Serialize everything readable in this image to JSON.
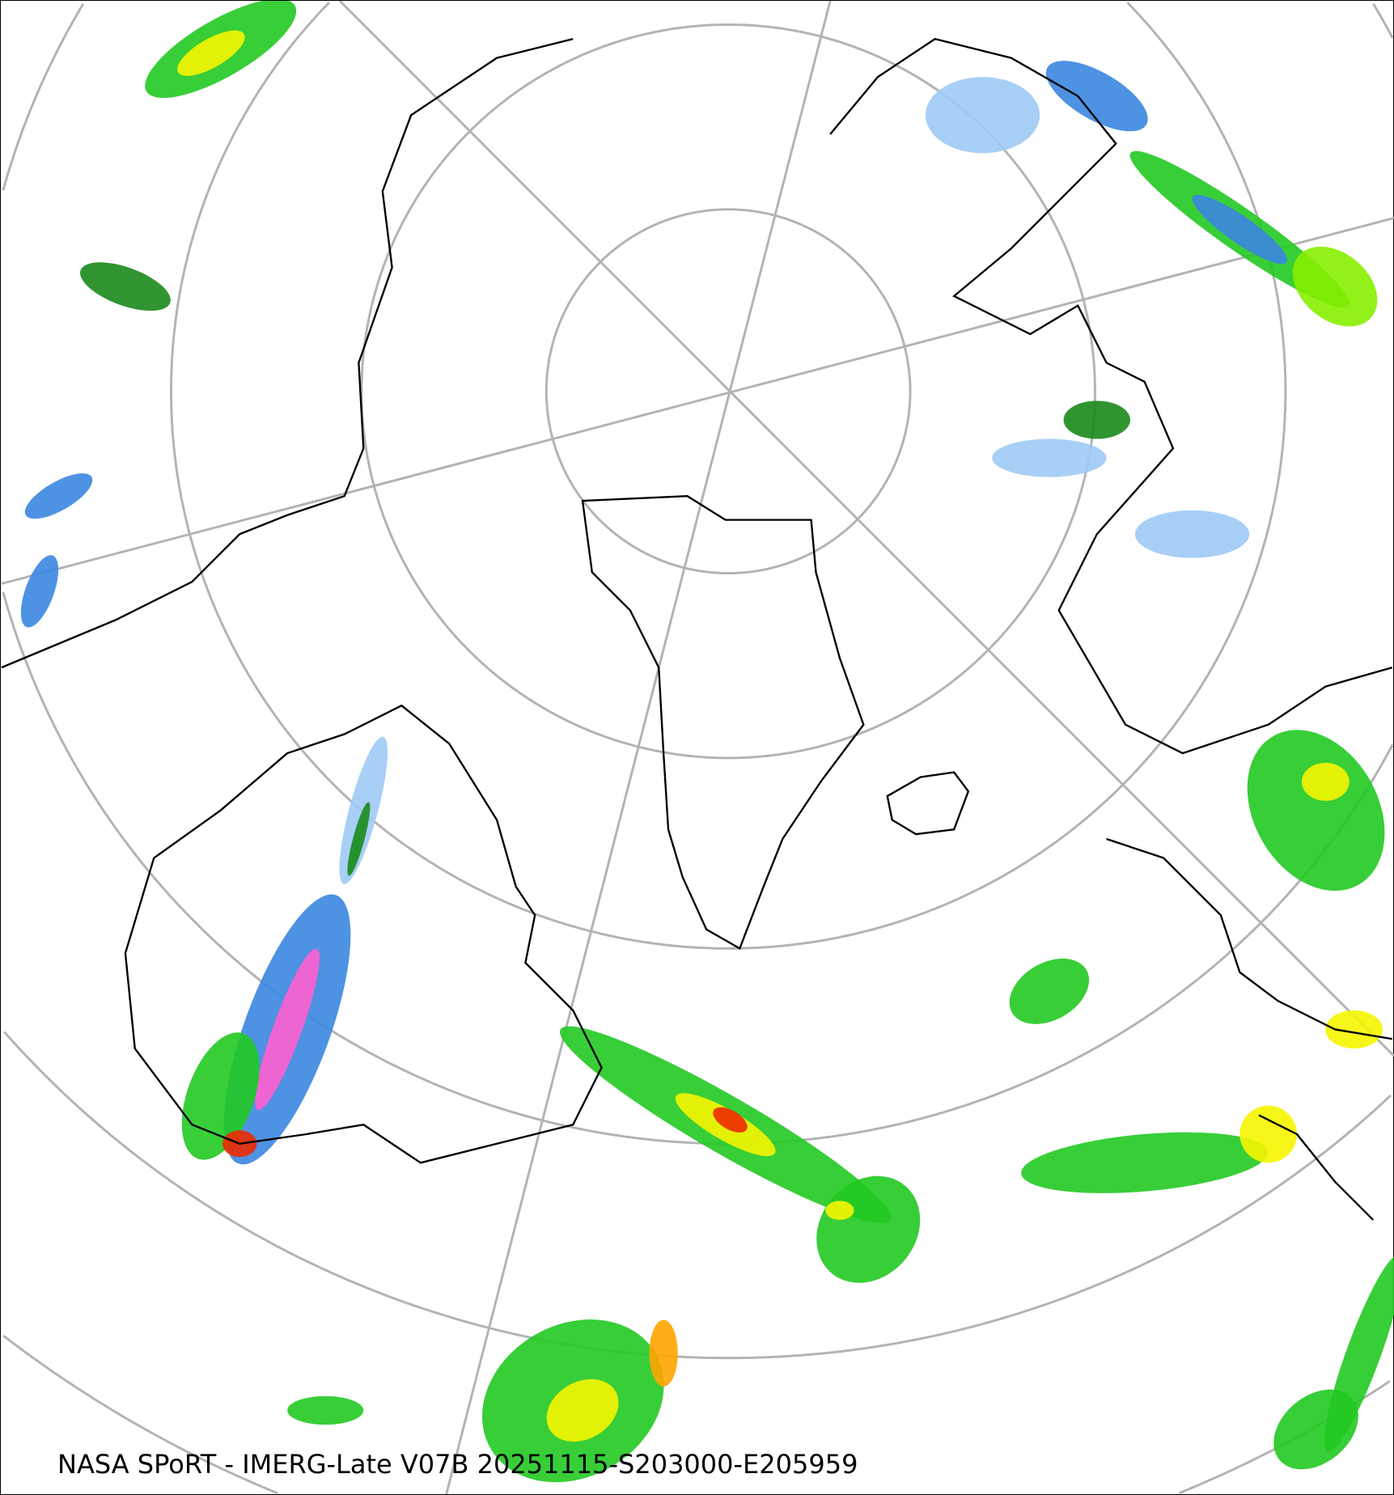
{
  "map": {
    "caption": "NASA SPoRT - IMERG-Late V07B 20251115-S203000-E205959",
    "projection": "north-polar-stereographic",
    "colors": {
      "graticule": "#b3b3b3",
      "coastline": "#000000",
      "light_blue": "#9fcaf5",
      "blue": "#3b86e0",
      "dark_blue": "#1f5fbf",
      "magenta": "#ff5fd0",
      "dark_green": "#1a8a1a",
      "green": "#22c922",
      "light_green": "#86f000",
      "yellow": "#f5f500",
      "orange": "#ffa500",
      "red": "#ee2a00"
    }
  }
}
